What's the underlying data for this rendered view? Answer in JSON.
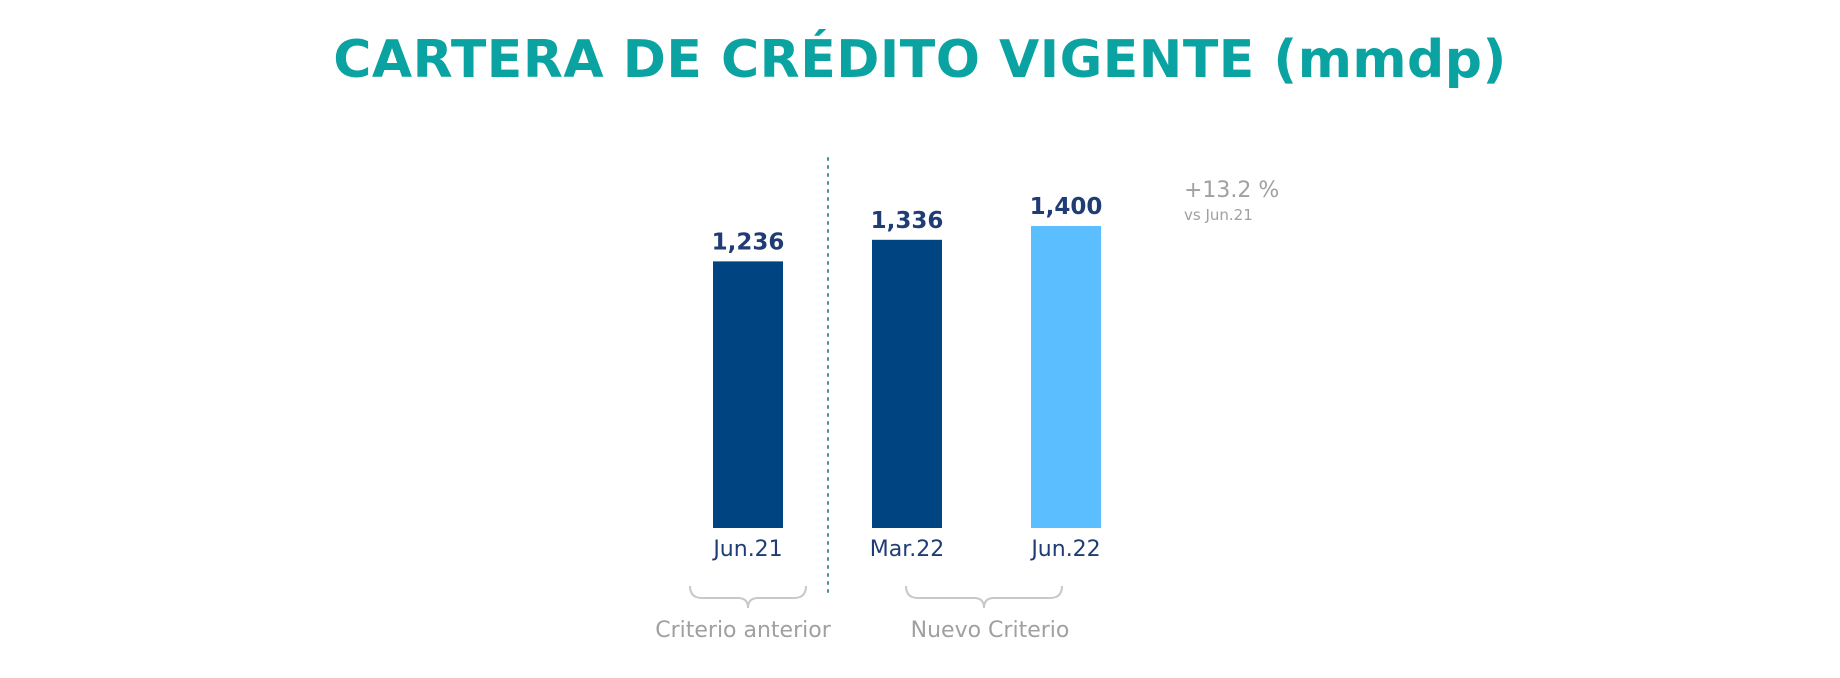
{
  "chart_data": {
    "type": "bar",
    "title": "CARTERA DE CRÉDITO VIGENTE (mmdp)",
    "categories": [
      "Jun.21",
      "Mar.22",
      "Jun.22"
    ],
    "values": [
      1236,
      1336,
      1400
    ],
    "value_labels": [
      "1,236",
      "1,336",
      "1,400"
    ],
    "bar_colors": [
      "#004481",
      "#004481",
      "#5bbeff"
    ],
    "groups": [
      {
        "label": "Criterio anterior",
        "categories": [
          "Jun.21"
        ]
      },
      {
        "label": "Nuevo Criterio",
        "categories": [
          "Mar.22",
          "Jun.22"
        ]
      }
    ],
    "annotation": {
      "main": "+13.2 %",
      "sub": "vs Jun.21"
    },
    "ylim": [
      0,
      1400
    ],
    "grid": false,
    "colors": {
      "title": "#0aa3a1",
      "value_label": "#1f3d74",
      "category_label": "#1f3d74",
      "group_label": "#a0a0a0",
      "annotation": "#a0a0a0",
      "divider": "#4a8f9a"
    }
  }
}
